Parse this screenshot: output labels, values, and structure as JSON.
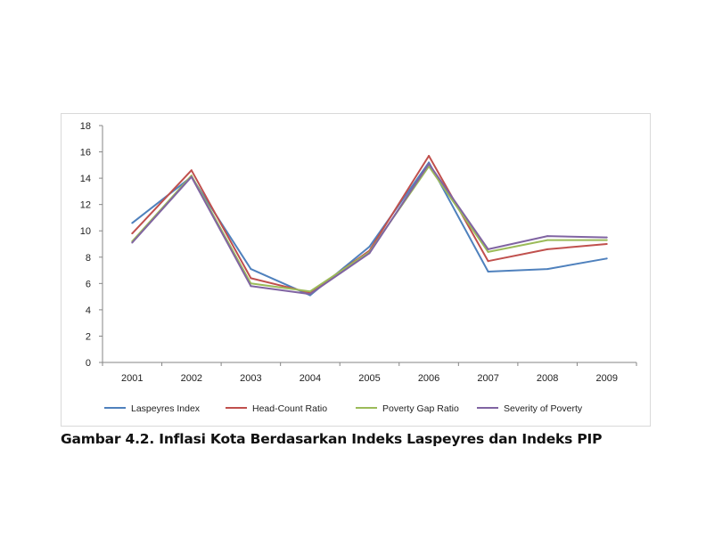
{
  "caption": "Gambar 4.2. Inflasi Kota Berdasarkan Indeks Laspeyres dan Indeks PIP",
  "chart_data": {
    "type": "line",
    "title": "",
    "xlabel": "",
    "ylabel": "",
    "categories": [
      "2001",
      "2002",
      "2003",
      "2004",
      "2005",
      "2006",
      "2007",
      "2008",
      "2009"
    ],
    "ylim": [
      0,
      18
    ],
    "yticks": [
      0,
      2,
      4,
      6,
      8,
      10,
      12,
      14,
      16,
      18
    ],
    "grid": false,
    "legend_position": "bottom",
    "series": [
      {
        "name": "Laspeyres Index",
        "color": "#4f81bd",
        "values": [
          10.6,
          14.1,
          7.1,
          5.1,
          8.8,
          15.2,
          6.9,
          7.1,
          7.9
        ]
      },
      {
        "name": "Head-Count Ratio",
        "color": "#c0504d",
        "values": [
          9.8,
          14.6,
          6.4,
          5.3,
          8.5,
          15.7,
          7.7,
          8.6,
          9.0
        ]
      },
      {
        "name": "Poverty Gap Ratio",
        "color": "#9bbb59",
        "values": [
          9.2,
          14.2,
          6.0,
          5.4,
          8.4,
          14.9,
          8.4,
          9.3,
          9.3
        ]
      },
      {
        "name": "Severity of Poverty",
        "color": "#8064a2",
        "values": [
          9.1,
          14.1,
          5.8,
          5.2,
          8.3,
          15.1,
          8.6,
          9.6,
          9.5
        ]
      }
    ]
  }
}
